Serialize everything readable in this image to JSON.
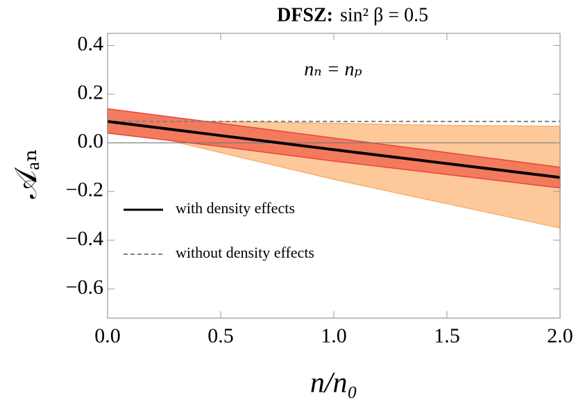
{
  "chart_data": {
    "type": "line",
    "title": "DFSZ:",
    "subtitle": "sin² β = 0.5",
    "annotation": "nₙ = nₚ",
    "xlabel": "n/n₀",
    "ylabel": "𝒜ₐₙ",
    "x": [
      0,
      0.5,
      1,
      1.5,
      2
    ],
    "series": [
      {
        "name": "with density effects",
        "color": "#000000",
        "dash": false,
        "values": [
          0.088,
          0.03,
          -0.028,
          -0.085,
          -0.142
        ]
      },
      {
        "name": "without density effects",
        "color": "#808080",
        "dash": true,
        "values": [
          0.088,
          0.088,
          0.088,
          0.088,
          0.088
        ]
      }
    ],
    "bands": [
      {
        "color": "#fdc99a",
        "edge": "#f9b06e",
        "upper": [
          0.09,
          0.088,
          0.08,
          0.072,
          0.068
        ],
        "lower": [
          0.07,
          -0.04,
          -0.15,
          -0.25,
          -0.35
        ]
      },
      {
        "color": "#f47a5e",
        "edge": "#e8453c",
        "upper": [
          0.14,
          0.08,
          0.02,
          -0.04,
          -0.1
        ],
        "lower": [
          0.04,
          -0.015,
          -0.075,
          -0.13,
          -0.185
        ]
      }
    ],
    "xlim": [
      0,
      2
    ],
    "ylim": [
      -0.72,
      0.45
    ],
    "xticks": [
      {
        "value": 0,
        "label": "0.0"
      },
      {
        "value": 0.5,
        "label": "0.5"
      },
      {
        "value": 1,
        "label": "1.0"
      },
      {
        "value": 1.5,
        "label": "1.5"
      },
      {
        "value": 2,
        "label": "2.0"
      }
    ],
    "yticks": [
      {
        "value": 0.4,
        "label": "0.4"
      },
      {
        "value": 0.2,
        "label": "0.2"
      },
      {
        "value": 0,
        "label": "0.0"
      },
      {
        "value": -0.2,
        "label": "−0.2"
      },
      {
        "value": -0.4,
        "label": "−0.4"
      },
      {
        "value": -0.6,
        "label": "−0.6"
      }
    ]
  }
}
